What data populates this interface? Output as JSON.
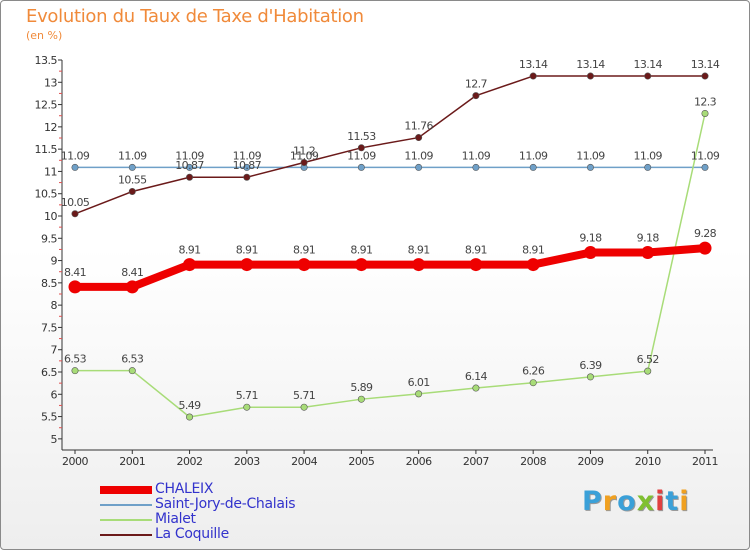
{
  "header": {
    "title": "Evolution du Taux de Taxe d'Habitation",
    "unit": "(en %)"
  },
  "brand": {
    "letters": [
      "P",
      "r",
      "o",
      "x",
      "i",
      "t",
      "i"
    ],
    "colors": [
      "#3aa0d8",
      "#f0a020",
      "#3aa0d8",
      "#80c030",
      "#e04040",
      "#3aa0d8",
      "#f0a020"
    ]
  },
  "chart_data": {
    "type": "line",
    "title": "Evolution du Taux de Taxe d'Habitation",
    "ylabel": "(en %)",
    "xlabel": "",
    "categories": [
      "2000",
      "2001",
      "2002",
      "2003",
      "2004",
      "2005",
      "2006",
      "2007",
      "2008",
      "2009",
      "2010",
      "2011"
    ],
    "ylim": [
      4.75,
      13.5
    ],
    "yticks": [
      "13.5",
      "13",
      "12.5",
      "12",
      "11.5",
      "11",
      "10.5",
      "10",
      "9.5",
      "9",
      "8.5",
      "8",
      "7.5",
      "7",
      "6.5",
      "6",
      "5.5",
      "5"
    ],
    "grid": false,
    "series": [
      {
        "name": "La Coquille",
        "color": "#6b1a1a",
        "values": [
          10.05,
          10.55,
          10.87,
          10.87,
          11.2,
          11.53,
          11.76,
          12.7,
          13.14,
          13.14,
          13.14,
          13.14
        ],
        "labels": [
          "10.05",
          "10.55",
          "10.87",
          "10.87",
          "11.2",
          "11.53",
          "11.76",
          "12.7",
          "13.14",
          "13.14",
          "13.14",
          "13.14"
        ]
      },
      {
        "name": "Saint-Jory-de-Chalais",
        "color": "#6fa0c8",
        "values": [
          11.09,
          11.09,
          11.09,
          11.09,
          11.09,
          11.09,
          11.09,
          11.09,
          11.09,
          11.09,
          11.09,
          11.09
        ],
        "labels": [
          "11.09",
          "11.09",
          "11.09",
          "11.09",
          "11.09",
          "11.09",
          "11.09",
          "11.09",
          "11.09",
          "11.09",
          "11.09",
          "11.09"
        ]
      },
      {
        "name": "Mialet",
        "color": "#a8dc78",
        "values": [
          6.53,
          6.53,
          5.49,
          5.71,
          5.71,
          5.89,
          6.01,
          6.14,
          6.26,
          6.39,
          6.52,
          12.3
        ],
        "labels": [
          "6.53",
          "6.53",
          "5.49",
          "5.71",
          "5.71",
          "5.89",
          "6.01",
          "6.14",
          "6.26",
          "6.39",
          "6.52",
          "12.3"
        ]
      },
      {
        "name": "CHALEIX",
        "color": "#ee0000",
        "values": [
          8.41,
          8.41,
          8.91,
          8.91,
          8.91,
          8.91,
          8.91,
          8.91,
          8.91,
          9.18,
          9.18,
          9.28
        ],
        "labels": [
          "8.41",
          "8.41",
          "8.91",
          "8.91",
          "8.91",
          "8.91",
          "8.91",
          "8.91",
          "8.91",
          "9.18",
          "9.18",
          "9.28"
        ]
      }
    ],
    "legend": {
      "placement": "bottom-left",
      "order": [
        "CHALEIX",
        "Saint-Jory-de-Chalais",
        "Mialet",
        "La Coquille"
      ]
    }
  }
}
